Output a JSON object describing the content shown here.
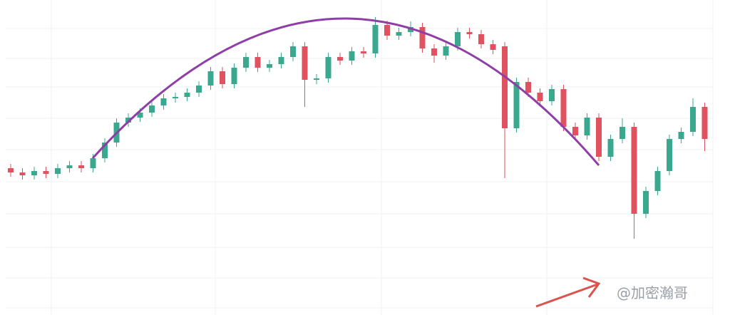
{
  "chart_data": {
    "type": "candlestick",
    "annotation": "@加密瀚哥",
    "ylim": [
      0,
      442
    ],
    "up_color": "#3aa88f",
    "down_color": "#e0525f",
    "trend_color": "#8e3ea6",
    "open": [
      206,
      200,
      196,
      202,
      198,
      206,
      210,
      206,
      220,
      242,
      270,
      277,
      284,
      294,
      304,
      306,
      312,
      322,
      342,
      324,
      347,
      362,
      347,
      352,
      362,
      377,
      330,
      332,
      362,
      357,
      370,
      367,
      407,
      392,
      397,
      404,
      374,
      364,
      377,
      397,
      394,
      380,
      377,
      262,
      327,
      312,
      300,
      317,
      264,
      252,
      277,
      222,
      247,
      264,
      142,
      174,
      202,
      247,
      257,
      292
    ],
    "high": [
      212,
      206,
      208,
      208,
      212,
      216,
      216,
      226,
      248,
      276,
      283,
      290,
      300,
      310,
      312,
      318,
      328,
      348,
      348,
      353,
      368,
      368,
      358,
      368,
      383,
      383,
      338,
      368,
      368,
      376,
      376,
      418,
      413,
      403,
      412,
      410,
      380,
      383,
      403,
      403,
      400,
      386,
      383,
      333,
      333,
      318,
      323,
      323,
      270,
      283,
      283,
      253,
      276,
      270,
      180,
      208,
      253,
      263,
      304,
      298
    ],
    "low": [
      194,
      190,
      190,
      192,
      192,
      200,
      200,
      200,
      214,
      236,
      264,
      271,
      278,
      288,
      298,
      300,
      306,
      316,
      318,
      318,
      341,
      341,
      341,
      346,
      356,
      292,
      324,
      326,
      351,
      351,
      361,
      361,
      386,
      386,
      391,
      368,
      354,
      358,
      371,
      388,
      374,
      366,
      192,
      256,
      306,
      294,
      294,
      258,
      246,
      246,
      216,
      216,
      241,
      107,
      136,
      168,
      196,
      241,
      251,
      230
    ],
    "close": [
      200,
      196,
      202,
      198,
      206,
      210,
      206,
      220,
      242,
      270,
      277,
      284,
      294,
      304,
      306,
      312,
      322,
      342,
      324,
      347,
      362,
      347,
      352,
      362,
      377,
      330,
      332,
      362,
      357,
      370,
      367,
      407,
      392,
      397,
      404,
      374,
      364,
      377,
      397,
      394,
      380,
      372,
      262,
      327,
      312,
      300,
      317,
      264,
      252,
      277,
      222,
      247,
      264,
      142,
      174,
      202,
      247,
      257,
      292,
      247
    ]
  }
}
